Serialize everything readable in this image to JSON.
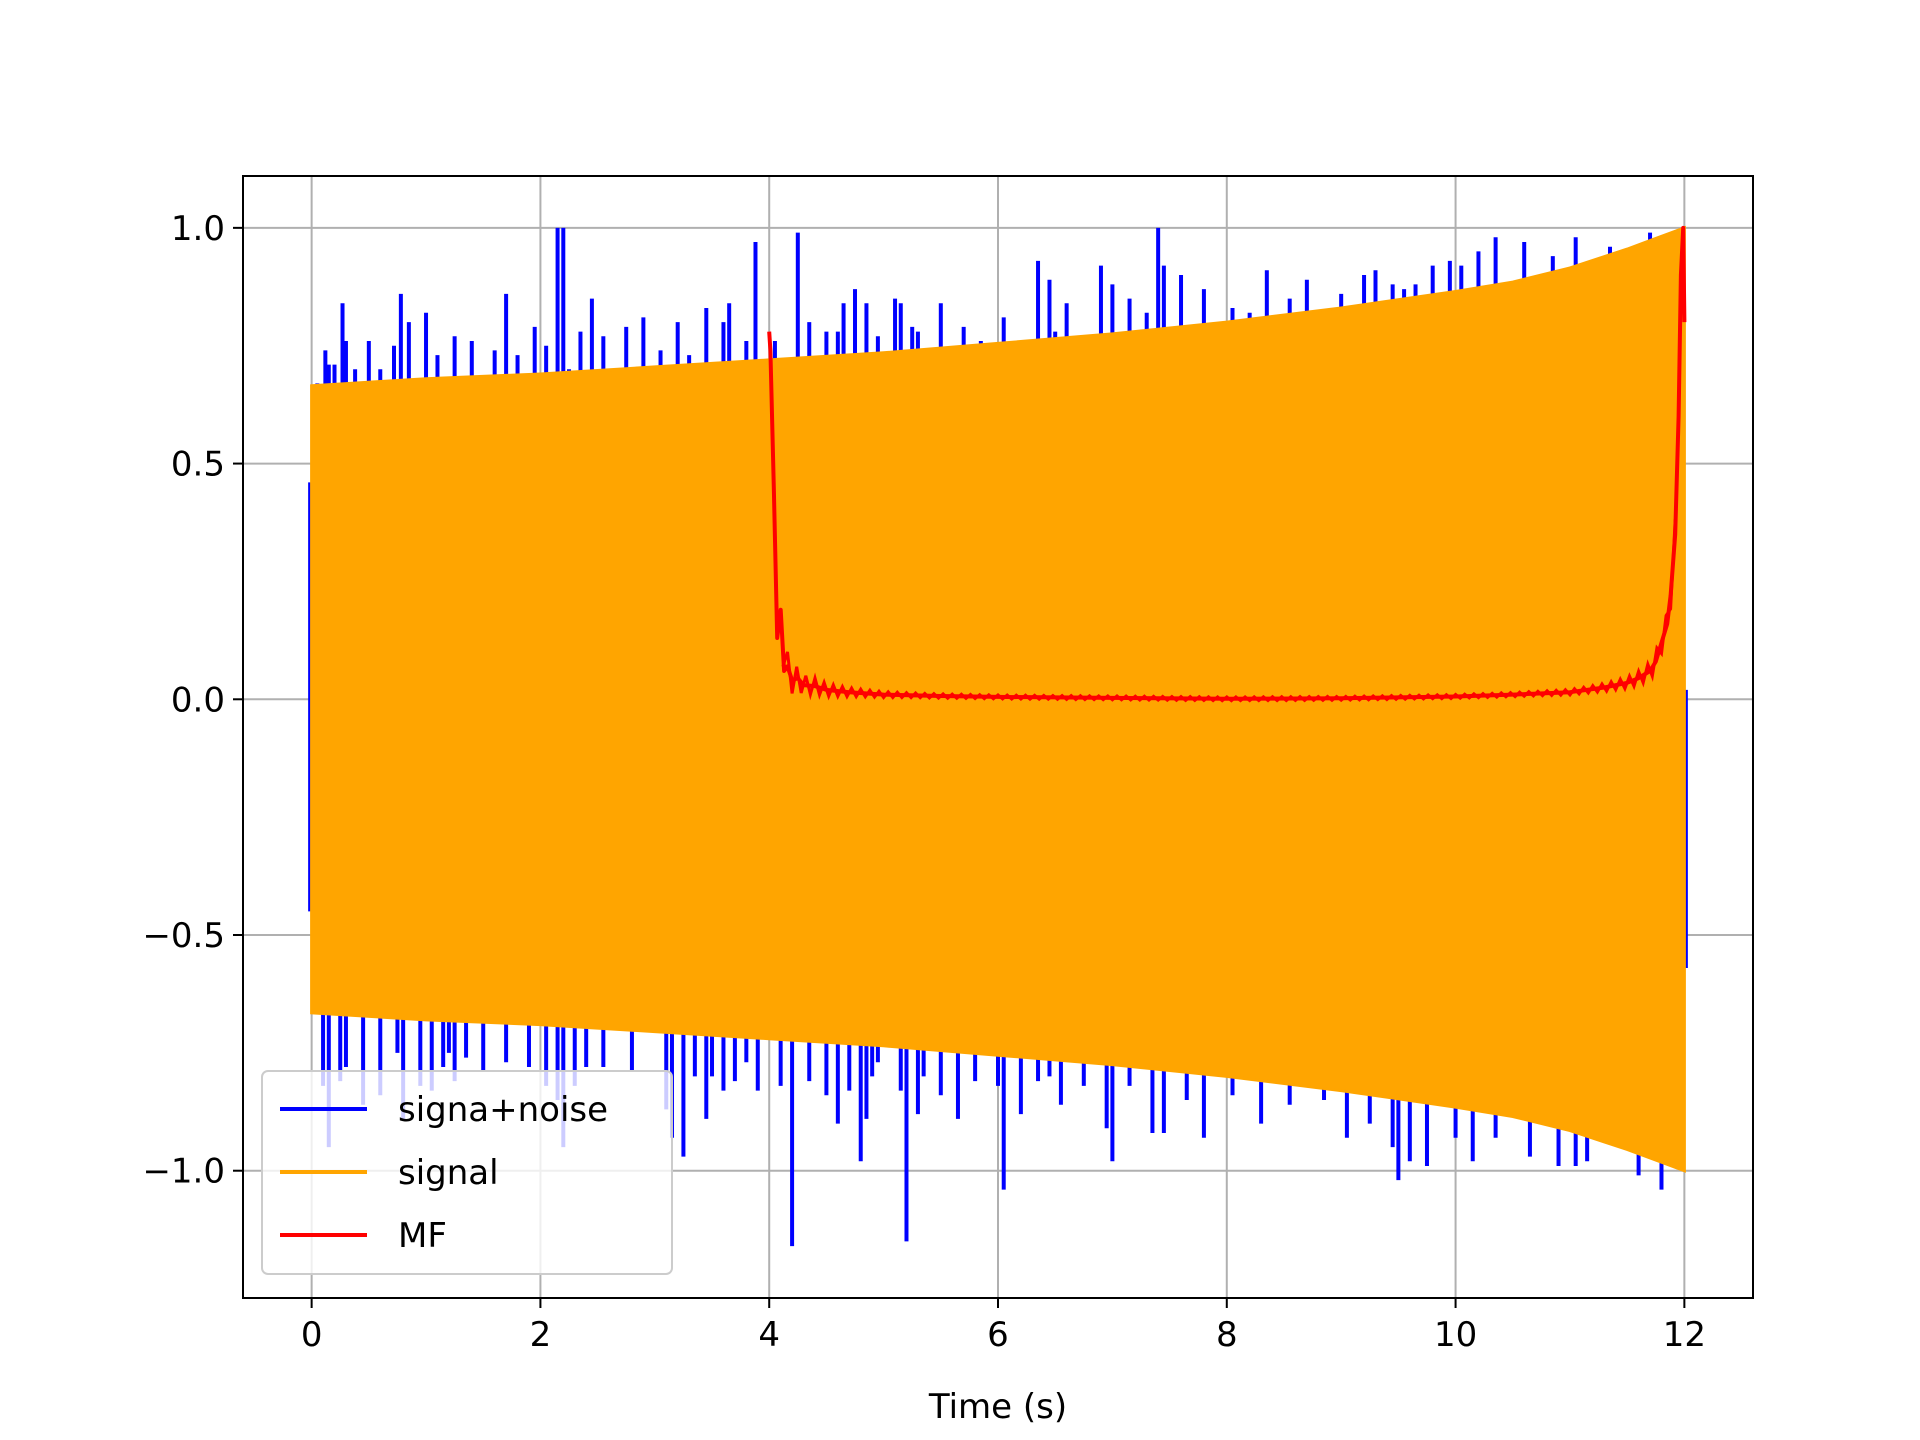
{
  "chart_data": {
    "type": "line",
    "title": "",
    "xlabel": "Time (s)",
    "ylabel": "",
    "xlim": [
      -0.6,
      12.6
    ],
    "ylim": [
      -1.27,
      1.11
    ],
    "grid": true,
    "legend_position": "lower-left",
    "x_ticks": [
      0,
      2,
      4,
      6,
      8,
      10,
      12
    ],
    "x_tick_labels": [
      "0",
      "2",
      "4",
      "6",
      "8",
      "10",
      "12"
    ],
    "y_ticks": [
      -1.0,
      -0.5,
      0.0,
      0.5,
      1.0
    ],
    "y_tick_labels": [
      "−1.0",
      "−0.5",
      "0.0",
      "0.5",
      "1.0"
    ],
    "series": [
      {
        "name": "signa+noise",
        "color": "#0000ff",
        "spikes_up": [
          [
            0.05,
            0.67
          ],
          [
            0.12,
            0.74
          ],
          [
            0.15,
            0.71
          ],
          [
            0.2,
            0.71
          ],
          [
            0.27,
            0.84
          ],
          [
            0.3,
            0.76
          ],
          [
            0.38,
            0.7
          ],
          [
            0.5,
            0.76
          ],
          [
            0.6,
            0.7
          ],
          [
            0.72,
            0.75
          ],
          [
            0.78,
            0.86
          ],
          [
            0.85,
            0.8
          ],
          [
            1.0,
            0.82
          ],
          [
            1.1,
            0.73
          ],
          [
            1.25,
            0.77
          ],
          [
            1.4,
            0.76
          ],
          [
            1.6,
            0.74
          ],
          [
            1.7,
            0.86
          ],
          [
            1.8,
            0.73
          ],
          [
            1.95,
            0.79
          ],
          [
            2.05,
            0.75
          ],
          [
            2.15,
            1.0
          ],
          [
            2.2,
            1.0
          ],
          [
            2.25,
            0.7
          ],
          [
            2.35,
            0.78
          ],
          [
            2.45,
            0.85
          ],
          [
            2.55,
            0.77
          ],
          [
            2.75,
            0.79
          ],
          [
            2.9,
            0.81
          ],
          [
            3.05,
            0.74
          ],
          [
            3.2,
            0.8
          ],
          [
            3.3,
            0.73
          ],
          [
            3.45,
            0.83
          ],
          [
            3.6,
            0.8
          ],
          [
            3.65,
            0.84
          ],
          [
            3.8,
            0.76
          ],
          [
            3.88,
            0.97
          ],
          [
            4.05,
            0.76
          ],
          [
            4.25,
            0.99
          ],
          [
            4.35,
            0.8
          ],
          [
            4.5,
            0.78
          ],
          [
            4.6,
            0.78
          ],
          [
            4.65,
            0.84
          ],
          [
            4.75,
            0.87
          ],
          [
            4.85,
            0.84
          ],
          [
            4.95,
            0.77
          ],
          [
            5.1,
            0.85
          ],
          [
            5.15,
            0.84
          ],
          [
            5.25,
            0.79
          ],
          [
            5.3,
            0.78
          ],
          [
            5.5,
            0.84
          ],
          [
            5.7,
            0.79
          ],
          [
            5.85,
            0.76
          ],
          [
            6.05,
            0.81
          ],
          [
            6.35,
            0.93
          ],
          [
            6.45,
            0.89
          ],
          [
            6.5,
            0.78
          ],
          [
            6.6,
            0.84
          ],
          [
            6.75,
            0.74
          ],
          [
            6.9,
            0.92
          ],
          [
            7.0,
            0.88
          ],
          [
            7.15,
            0.85
          ],
          [
            7.3,
            0.82
          ],
          [
            7.4,
            1.0
          ],
          [
            7.45,
            0.92
          ],
          [
            7.6,
            0.9
          ],
          [
            7.8,
            0.87
          ],
          [
            8.05,
            0.83
          ],
          [
            8.2,
            0.82
          ],
          [
            8.35,
            0.91
          ],
          [
            8.55,
            0.85
          ],
          [
            8.7,
            0.89
          ],
          [
            9.0,
            0.86
          ],
          [
            9.2,
            0.9
          ],
          [
            9.3,
            0.91
          ],
          [
            9.45,
            0.88
          ],
          [
            9.55,
            0.87
          ],
          [
            9.65,
            0.88
          ],
          [
            9.8,
            0.92
          ],
          [
            9.95,
            0.93
          ],
          [
            10.05,
            0.92
          ],
          [
            10.2,
            0.95
          ],
          [
            10.35,
            0.98
          ],
          [
            10.6,
            0.97
          ],
          [
            10.85,
            0.94
          ],
          [
            11.05,
            0.98
          ],
          [
            11.35,
            0.96
          ],
          [
            11.7,
            0.99
          ]
        ],
        "spikes_down": [
          [
            0.1,
            -0.82
          ],
          [
            0.15,
            -0.95
          ],
          [
            0.25,
            -0.81
          ],
          [
            0.3,
            -0.78
          ],
          [
            0.45,
            -0.86
          ],
          [
            0.6,
            -0.84
          ],
          [
            0.75,
            -0.75
          ],
          [
            0.8,
            -0.89
          ],
          [
            0.95,
            -0.82
          ],
          [
            1.05,
            -0.83
          ],
          [
            1.15,
            -0.78
          ],
          [
            1.2,
            -0.75
          ],
          [
            1.25,
            -0.81
          ],
          [
            1.35,
            -0.76
          ],
          [
            1.5,
            -0.79
          ],
          [
            1.7,
            -0.77
          ],
          [
            1.9,
            -0.78
          ],
          [
            2.05,
            -0.82
          ],
          [
            2.15,
            -0.85
          ],
          [
            2.2,
            -0.95
          ],
          [
            2.3,
            -0.82
          ],
          [
            2.4,
            -0.78
          ],
          [
            2.55,
            -0.78
          ],
          [
            2.8,
            -0.79
          ],
          [
            3.1,
            -0.87
          ],
          [
            3.15,
            -0.93
          ],
          [
            3.25,
            -0.97
          ],
          [
            3.35,
            -0.8
          ],
          [
            3.45,
            -0.89
          ],
          [
            3.5,
            -0.8
          ],
          [
            3.6,
            -0.83
          ],
          [
            3.7,
            -0.81
          ],
          [
            3.8,
            -0.77
          ],
          [
            3.9,
            -0.83
          ],
          [
            4.1,
            -0.82
          ],
          [
            4.2,
            -1.16
          ],
          [
            4.35,
            -0.81
          ],
          [
            4.5,
            -0.84
          ],
          [
            4.6,
            -0.9
          ],
          [
            4.7,
            -0.83
          ],
          [
            4.8,
            -0.98
          ],
          [
            4.85,
            -0.89
          ],
          [
            4.9,
            -0.8
          ],
          [
            4.95,
            -0.77
          ],
          [
            5.15,
            -0.83
          ],
          [
            5.2,
            -1.15
          ],
          [
            5.3,
            -0.88
          ],
          [
            5.35,
            -0.8
          ],
          [
            5.5,
            -0.84
          ],
          [
            5.65,
            -0.89
          ],
          [
            5.8,
            -0.81
          ],
          [
            6.0,
            -0.82
          ],
          [
            6.05,
            -1.04
          ],
          [
            6.2,
            -0.88
          ],
          [
            6.35,
            -0.81
          ],
          [
            6.45,
            -0.8
          ],
          [
            6.55,
            -0.86
          ],
          [
            6.75,
            -0.82
          ],
          [
            6.95,
            -0.91
          ],
          [
            7.0,
            -0.98
          ],
          [
            7.15,
            -0.82
          ],
          [
            7.35,
            -0.92
          ],
          [
            7.45,
            -0.92
          ],
          [
            7.65,
            -0.85
          ],
          [
            7.8,
            -0.93
          ],
          [
            8.05,
            -0.84
          ],
          [
            8.3,
            -0.9
          ],
          [
            8.55,
            -0.86
          ],
          [
            8.85,
            -0.85
          ],
          [
            9.05,
            -0.93
          ],
          [
            9.25,
            -0.9
          ],
          [
            9.45,
            -0.95
          ],
          [
            9.5,
            -1.02
          ],
          [
            9.6,
            -0.98
          ],
          [
            9.75,
            -0.99
          ],
          [
            10.0,
            -0.93
          ],
          [
            10.15,
            -0.98
          ],
          [
            10.35,
            -0.93
          ],
          [
            10.65,
            -0.97
          ],
          [
            10.9,
            -0.99
          ],
          [
            11.05,
            -0.99
          ],
          [
            11.15,
            -0.98
          ],
          [
            11.6,
            -1.01
          ],
          [
            11.8,
            -1.04
          ]
        ]
      },
      {
        "name": "signal",
        "color": "#ffa500",
        "envelope_t": [
          0,
          1,
          2,
          3,
          4,
          5,
          6,
          7,
          8,
          9,
          10,
          10.5,
          11,
          11.5,
          12
        ],
        "envelope_amp": [
          0.665,
          0.68,
          0.69,
          0.705,
          0.72,
          0.735,
          0.755,
          0.775,
          0.8,
          0.83,
          0.865,
          0.885,
          0.915,
          0.955,
          1.0
        ]
      },
      {
        "name": "MF",
        "color": "#ff0000",
        "x": [
          4.0,
          4.01,
          4.04,
          4.07,
          4.1,
          4.13,
          4.16,
          4.2,
          4.25,
          4.3,
          4.4,
          4.5,
          4.7,
          5.0,
          5.5,
          6.0,
          7.0,
          8.0,
          9.0,
          10.0,
          10.5,
          11.0,
          11.3,
          11.5,
          11.6,
          11.7,
          11.75,
          11.8,
          11.85,
          11.88,
          11.92,
          11.95,
          11.97,
          11.99,
          12.0
        ],
        "y": [
          0.78,
          0.74,
          0.45,
          0.13,
          0.19,
          0.06,
          0.07,
          0.04,
          0.045,
          0.03,
          0.028,
          0.02,
          0.015,
          0.01,
          0.007,
          0.005,
          0.003,
          0.001,
          0.002,
          0.006,
          0.01,
          0.015,
          0.025,
          0.035,
          0.045,
          0.06,
          0.08,
          0.12,
          0.16,
          0.22,
          0.35,
          0.6,
          0.9,
          1.0,
          0.8
        ]
      }
    ]
  },
  "legend": {
    "items": [
      {
        "label": "signa+noise",
        "color": "#0000ff"
      },
      {
        "label": "signal",
        "color": "#ffa500"
      },
      {
        "label": "MF",
        "color": "#ff0000"
      }
    ]
  }
}
